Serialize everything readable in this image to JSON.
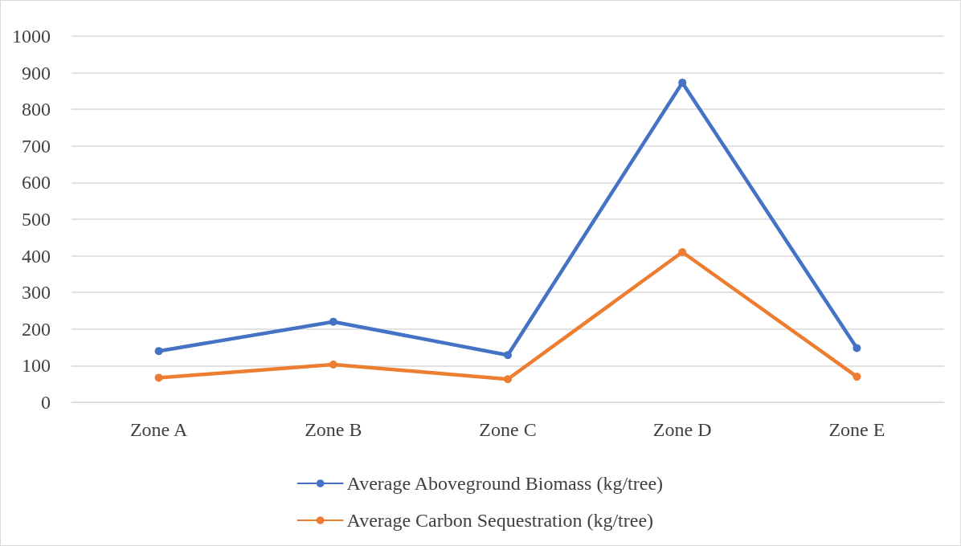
{
  "chart_data": {
    "type": "line",
    "categories": [
      "Zone A",
      "Zone B",
      "Zone C",
      "Zone D",
      "Zone E"
    ],
    "series": [
      {
        "name": "Average Aboveground Biomass (kg/tree)",
        "color": "#4472c4",
        "values": [
          140,
          220,
          129,
          873,
          148
        ]
      },
      {
        "name": "Average Carbon Sequestration (kg/tree)",
        "color": "#ed7d31",
        "values": [
          67,
          103,
          63,
          410,
          70
        ]
      }
    ],
    "ylim": [
      0,
      1000
    ],
    "yticks": [
      0,
      100,
      200,
      300,
      400,
      500,
      600,
      700,
      800,
      900,
      1000
    ],
    "grid": "y",
    "legend": "bottom",
    "marker": "circle",
    "line_style": "solid"
  }
}
